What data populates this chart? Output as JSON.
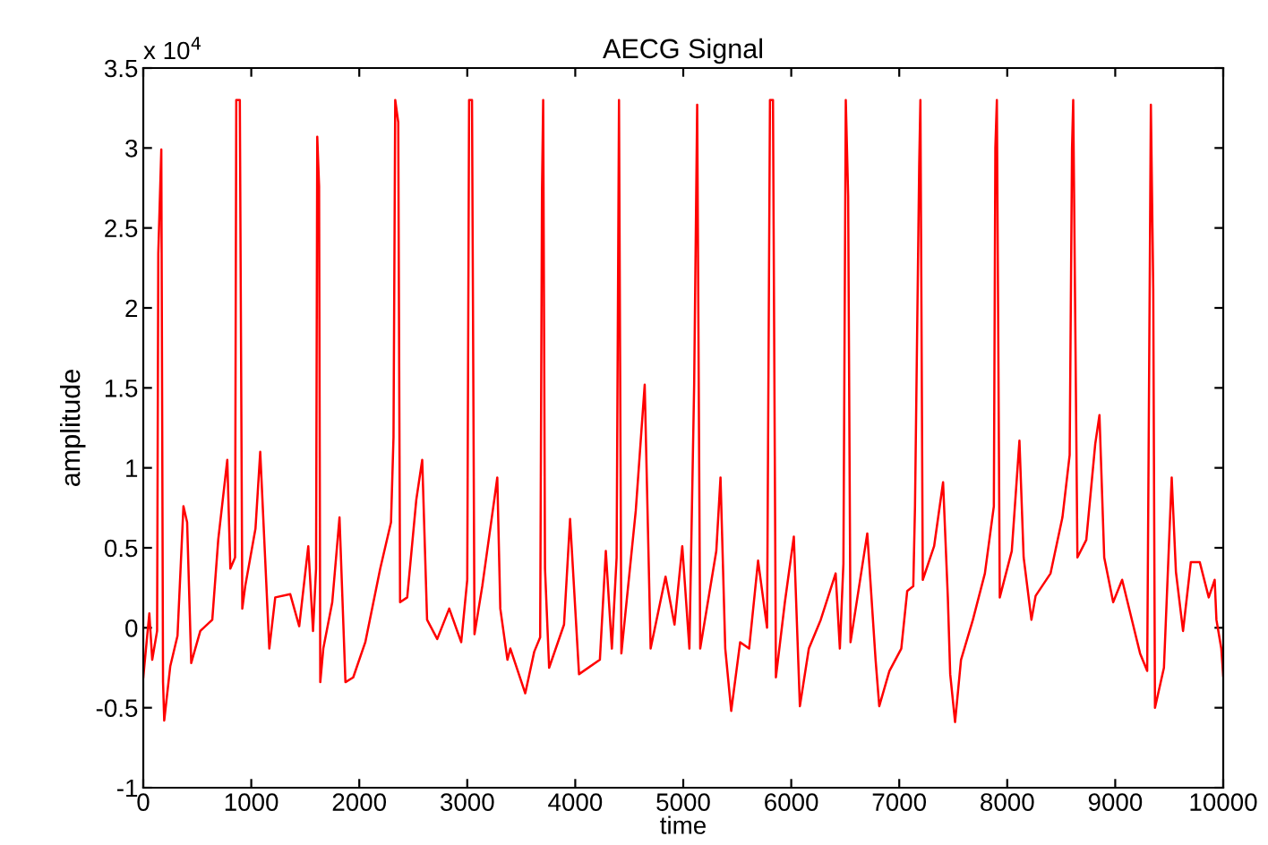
{
  "chart_data": {
    "type": "line",
    "title": "AECG Signal",
    "xlabel": "time",
    "ylabel": "amplitude",
    "annotations": [
      "x 10$^{4}$"
    ],
    "x": [
      0,
      56,
      83,
      128,
      139,
      167,
      183,
      194,
      250,
      317,
      372,
      406,
      444,
      528,
      639,
      694,
      778,
      806,
      850,
      861,
      894,
      917,
      944,
      1039,
      1083,
      1128,
      1167,
      1222,
      1361,
      1444,
      1528,
      1572,
      1600,
      1611,
      1628,
      1639,
      1667,
      1750,
      1817,
      1872,
      1944,
      2056,
      2194,
      2294,
      2317,
      2333,
      2361,
      2378,
      2444,
      2528,
      2583,
      2628,
      2722,
      2833,
      2944,
      3000,
      3017,
      3044,
      3067,
      3139,
      3250,
      3278,
      3306,
      3372,
      3399,
      3537,
      3620,
      3675,
      3692,
      3703,
      3720,
      3758,
      3896,
      3952,
      4035,
      4228,
      4283,
      4339,
      4383,
      4405,
      4427,
      4560,
      4643,
      4698,
      4836,
      4919,
      4991,
      5057,
      5101,
      5129,
      5157,
      5306,
      5345,
      5389,
      5444,
      5527,
      5610,
      5693,
      5776,
      5803,
      5831,
      5858,
      5941,
      6024,
      6080,
      6163,
      6273,
      6411,
      6450,
      6483,
      6505,
      6527,
      6549,
      6704,
      6781,
      6815,
      6909,
      7019,
      7074,
      7130,
      7146,
      7185,
      7196,
      7218,
      7323,
      7406,
      7450,
      7472,
      7517,
      7572,
      7682,
      7793,
      7876,
      7890,
      7904,
      7931,
      8042,
      8113,
      8152,
      8224,
      8263,
      8401,
      8511,
      8578,
      8600,
      8611,
      8650,
      8732,
      8815,
      8854,
      8898,
      8981,
      9064,
      9230,
      9296,
      9330,
      9352,
      9368,
      9451,
      9523,
      9562,
      9628,
      9700,
      9783,
      9866,
      9921,
      9937,
      9982,
      10000
    ],
    "series": [
      {
        "color": "#ff0000",
        "values": [
          -0.31,
          0.09,
          -0.2,
          -0.02,
          2.34,
          2.99,
          -0.34,
          -0.58,
          -0.24,
          -0.05,
          0.76,
          0.66,
          -0.22,
          -0.02,
          0.05,
          0.55,
          1.05,
          0.37,
          0.44,
          3.3,
          3.3,
          0.12,
          0.26,
          0.62,
          1.1,
          0.44,
          -0.13,
          0.19,
          0.21,
          0.01,
          0.51,
          -0.02,
          0.37,
          3.07,
          2.76,
          -0.34,
          -0.13,
          0.16,
          0.69,
          -0.34,
          -0.31,
          -0.09,
          0.37,
          0.66,
          1.19,
          3.3,
          3.16,
          0.16,
          0.19,
          0.8,
          1.05,
          0.05,
          -0.07,
          0.12,
          -0.09,
          0.3,
          3.3,
          3.3,
          -0.04,
          0.26,
          0.8,
          0.94,
          0.12,
          -0.2,
          -0.13,
          -0.41,
          -0.15,
          -0.06,
          2.73,
          3.3,
          0.37,
          -0.25,
          0.02,
          0.68,
          -0.29,
          -0.2,
          0.48,
          -0.13,
          0.44,
          3.3,
          -0.16,
          0.73,
          1.52,
          -0.13,
          0.32,
          0.02,
          0.51,
          -0.13,
          1.52,
          3.27,
          -0.13,
          0.48,
          0.94,
          -0.13,
          -0.52,
          -0.09,
          -0.13,
          0.42,
          0,
          3.3,
          3.3,
          -0.31,
          0.16,
          0.57,
          -0.49,
          -0.13,
          0.05,
          0.34,
          -0.13,
          0.4,
          3.3,
          2.7,
          -0.09,
          0.59,
          -0.2,
          -0.49,
          -0.27,
          -0.13,
          0.23,
          0.26,
          0.76,
          2.9,
          3.3,
          0.3,
          0.51,
          0.91,
          0.19,
          -0.29,
          -0.59,
          -0.2,
          0.05,
          0.34,
          0.76,
          3.0,
          3.3,
          0.19,
          0.48,
          1.17,
          0.44,
          0.05,
          0.2,
          0.34,
          0.69,
          1.08,
          3.0,
          3.3,
          0.44,
          0.55,
          1.15,
          1.33,
          0.44,
          0.16,
          0.3,
          -0.16,
          -0.27,
          3.27,
          2.12,
          -0.5,
          -0.25,
          0.94,
          0.35,
          -0.02,
          0.41,
          0.41,
          0.19,
          0.3,
          0.05,
          -0.13,
          -0.3
        ]
      }
    ],
    "xlim": [
      0,
      10000
    ],
    "xticks": [
      0,
      1000,
      2000,
      3000,
      4000,
      5000,
      6000,
      7000,
      8000,
      9000,
      10000
    ],
    "ylim": [
      -1,
      3.5
    ],
    "yticks": [
      -1,
      -0.5,
      0,
      0.5,
      1,
      1.5,
      2,
      2.5,
      3,
      3.5
    ],
    "grid": false,
    "legend": false
  }
}
